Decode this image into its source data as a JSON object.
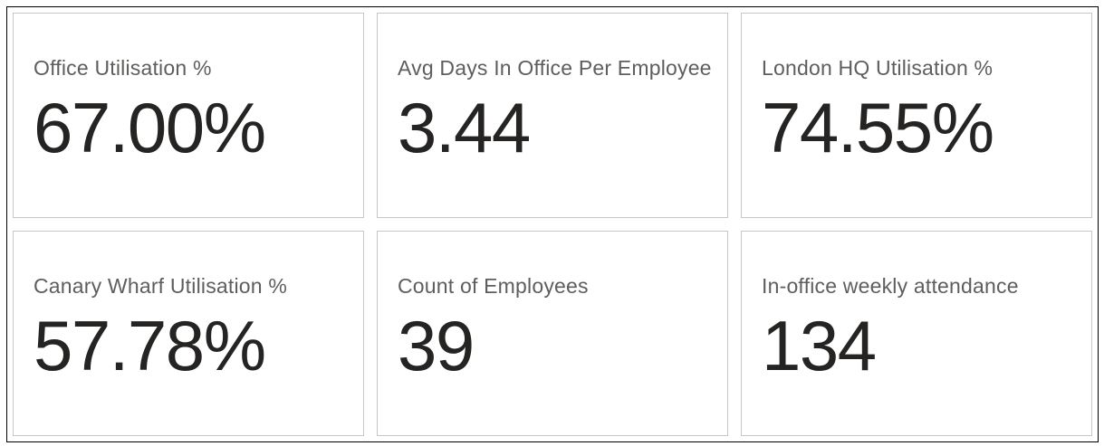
{
  "page": {
    "background_color": "#ffffff",
    "frame_border_color": "#000000",
    "card_border_color": "#c6c6c6",
    "label_color": "#605e5c",
    "value_color": "#252423"
  },
  "cards": [
    {
      "label": "Office Utilisation %",
      "value": "67.00%"
    },
    {
      "label": "Avg Days In Office Per Employee",
      "value": "3.44"
    },
    {
      "label": "London HQ Utilisation %",
      "value": "74.55%"
    },
    {
      "label": "Canary Wharf Utilisation %",
      "value": "57.78%"
    },
    {
      "label": "Count of Employees",
      "value": "39"
    },
    {
      "label": "In-office weekly attendance",
      "value": "134"
    }
  ],
  "chart_data": {
    "type": "table",
    "title": "Office attendance KPI cards",
    "categories": [
      "Office Utilisation %",
      "Avg Days In Office Per Employee",
      "London HQ Utilisation %",
      "Canary Wharf Utilisation %",
      "Count of Employees",
      "In-office weekly attendance"
    ],
    "values": [
      67.0,
      3.44,
      74.55,
      57.78,
      39,
      134
    ],
    "display_values": [
      "67.00%",
      "3.44",
      "74.55%",
      "57.78%",
      "39",
      "134"
    ],
    "layout": "2 rows x 3 columns of KPI cards, labels above values, left-aligned"
  }
}
